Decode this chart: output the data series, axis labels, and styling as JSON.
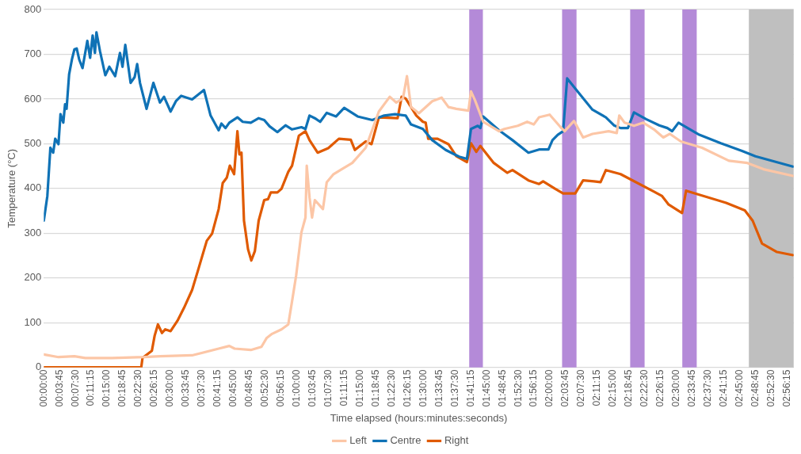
{
  "chart_data": {
    "type": "line",
    "xlabel": "Time elapsed (hours:minutes:seconds)",
    "ylabel": "Temperature (°C)",
    "xlim": [
      0,
      2.963
    ],
    "xticks": [
      {
        "value": 0,
        "label": "00:00:00"
      },
      {
        "value": 0.0625,
        "label": "00:03:45"
      },
      {
        "value": 0.125,
        "label": "00:07:30"
      },
      {
        "value": 0.1875,
        "label": "00:11:15"
      },
      {
        "value": 0.25,
        "label": "00:15:00"
      },
      {
        "value": 0.3125,
        "label": "00:18:45"
      },
      {
        "value": 0.375,
        "label": "00:22:30"
      },
      {
        "value": 0.4375,
        "label": "00:26:15"
      },
      {
        "value": 0.5,
        "label": "00:30:00"
      },
      {
        "value": 0.5625,
        "label": "00:33:45"
      },
      {
        "value": 0.625,
        "label": "00:37:30"
      },
      {
        "value": 0.6875,
        "label": "00:41:15"
      },
      {
        "value": 0.75,
        "label": "00:45:00"
      },
      {
        "value": 0.8125,
        "label": "00:48:45"
      },
      {
        "value": 0.875,
        "label": "00:52:30"
      },
      {
        "value": 0.9375,
        "label": "00:56:15"
      },
      {
        "value": 1,
        "label": "01:00:00"
      },
      {
        "value": 1.0625,
        "label": "01:03:45"
      },
      {
        "value": 1.125,
        "label": "01:07:30"
      },
      {
        "value": 1.1875,
        "label": "01:11:15"
      },
      {
        "value": 1.25,
        "label": "01:15:00"
      },
      {
        "value": 1.3125,
        "label": "01:18:45"
      },
      {
        "value": 1.375,
        "label": "01:22:30"
      },
      {
        "value": 1.4375,
        "label": "01:26:15"
      },
      {
        "value": 1.5,
        "label": "01:30:00"
      },
      {
        "value": 1.5625,
        "label": "01:33:45"
      },
      {
        "value": 1.625,
        "label": "01:37:30"
      },
      {
        "value": 1.6875,
        "label": "01:41:15"
      },
      {
        "value": 1.75,
        "label": "01:45:00"
      },
      {
        "value": 1.8125,
        "label": "01:48:45"
      },
      {
        "value": 1.875,
        "label": "01:52:30"
      },
      {
        "value": 1.9375,
        "label": "01:56:15"
      },
      {
        "value": 2,
        "label": "02:00:00"
      },
      {
        "value": 2.0625,
        "label": "02:03:45"
      },
      {
        "value": 2.125,
        "label": "02:07:30"
      },
      {
        "value": 2.1875,
        "label": "02:11:15"
      },
      {
        "value": 2.25,
        "label": "02:15:00"
      },
      {
        "value": 2.3125,
        "label": "02:18:45"
      },
      {
        "value": 2.375,
        "label": "02:22:30"
      },
      {
        "value": 2.4375,
        "label": "02:26:15"
      },
      {
        "value": 2.5,
        "label": "02:30:00"
      },
      {
        "value": 2.5625,
        "label": "02:33:45"
      },
      {
        "value": 2.625,
        "label": "02:37:30"
      },
      {
        "value": 2.6875,
        "label": "02:41:15"
      },
      {
        "value": 2.75,
        "label": "02:45:00"
      },
      {
        "value": 2.8125,
        "label": "02:48:45"
      },
      {
        "value": 2.875,
        "label": "02:52:30"
      },
      {
        "value": 2.9375,
        "label": "02:56:15"
      }
    ],
    "ylim": [
      0,
      800
    ],
    "yticks": [
      0,
      100,
      200,
      300,
      400,
      500,
      600,
      700,
      800
    ],
    "grid": "y",
    "legend": "bottom",
    "bands": [
      {
        "axis": "x",
        "from": 1.681,
        "to": 1.735,
        "color": "#b48ad8"
      },
      {
        "axis": "x",
        "from": 2.048,
        "to": 2.105,
        "color": "#b48ad8"
      },
      {
        "axis": "x",
        "from": 2.317,
        "to": 2.374,
        "color": "#b48ad8"
      },
      {
        "axis": "x",
        "from": 2.523,
        "to": 2.58,
        "color": "#b48ad8"
      },
      {
        "axis": "x",
        "from": 2.786,
        "to": 2.963,
        "color": "#bfbfbf"
      }
    ],
    "series": [
      {
        "name": "Left",
        "color": "#fcc6a6",
        "x": [
          0,
          0.058,
          0.121,
          0.164,
          0.269,
          0.396,
          0.459,
          0.586,
          0.691,
          0.733,
          0.754,
          0.818,
          0.86,
          0.881,
          0.902,
          0.939,
          0.966,
          0.981,
          0.997,
          1.018,
          1.034,
          1.039,
          1.05,
          1.06,
          1.071,
          1.103,
          1.118,
          1.145,
          1.177,
          1.219,
          1.272,
          1.324,
          1.367,
          1.393,
          1.419,
          1.435,
          1.451,
          1.482,
          1.535,
          1.572,
          1.599,
          1.63,
          1.678,
          1.688,
          1.704,
          1.736,
          1.799,
          1.82,
          1.873,
          1.91,
          1.936,
          1.957,
          1.999,
          2.042,
          2.058,
          2.095,
          2.131,
          2.168,
          2.232,
          2.264,
          2.274,
          2.295,
          2.332,
          2.369,
          2.411,
          2.448,
          2.474,
          2.517,
          2.601,
          2.707,
          2.78,
          2.844,
          2.96
        ],
        "values": [
          29,
          23,
          25,
          21,
          21,
          23,
          25,
          27,
          42,
          48,
          42,
          39,
          46,
          66,
          75,
          85,
          96,
          148,
          205,
          302,
          335,
          451,
          380,
          335,
          374,
          354,
          414,
          432,
          443,
          457,
          491,
          572,
          605,
          592,
          601,
          651,
          582,
          568,
          595,
          603,
          582,
          578,
          574,
          617,
          597,
          549,
          528,
          533,
          540,
          549,
          543,
          559,
          565,
          537,
          528,
          551,
          514,
          522,
          528,
          524,
          563,
          547,
          540,
          547,
          532,
          514,
          522,
          505,
          491,
          462,
          457,
          443,
          428
        ]
      },
      {
        "name": "Centre",
        "color": "#0f72b6",
        "x": [
          0,
          0.014,
          0.026,
          0.037,
          0.045,
          0.058,
          0.066,
          0.077,
          0.084,
          0.09,
          0.1,
          0.111,
          0.121,
          0.13,
          0.14,
          0.153,
          0.172,
          0.183,
          0.193,
          0.202,
          0.208,
          0.222,
          0.243,
          0.259,
          0.282,
          0.301,
          0.311,
          0.322,
          0.343,
          0.359,
          0.369,
          0.38,
          0.406,
          0.433,
          0.459,
          0.475,
          0.501,
          0.522,
          0.543,
          0.586,
          0.633,
          0.659,
          0.691,
          0.702,
          0.718,
          0.733,
          0.765,
          0.786,
          0.818,
          0.849,
          0.871,
          0.892,
          0.923,
          0.955,
          0.981,
          1.018,
          1.034,
          1.05,
          1.071,
          1.092,
          1.118,
          1.155,
          1.187,
          1.24,
          1.298,
          1.345,
          1.388,
          1.43,
          1.451,
          1.498,
          1.535,
          1.588,
          1.641,
          1.672,
          1.688,
          1.715,
          1.725,
          1.736,
          1.799,
          1.852,
          1.915,
          1.957,
          1.994,
          2.01,
          2.031,
          2.052,
          2.068,
          2.105,
          2.168,
          2.221,
          2.253,
          2.279,
          2.308,
          2.332,
          2.38,
          2.432,
          2.464,
          2.483,
          2.508,
          2.59,
          2.675,
          2.759,
          2.812,
          2.96
        ],
        "values": [
          328,
          383,
          491,
          480,
          511,
          499,
          566,
          547,
          588,
          578,
          655,
          688,
          711,
          713,
          688,
          669,
          730,
          692,
          742,
          703,
          749,
          707,
          653,
          672,
          651,
          703,
          672,
          721,
          636,
          649,
          678,
          636,
          578,
          636,
          592,
          605,
          572,
          595,
          607,
          599,
          620,
          563,
          530,
          545,
          535,
          547,
          559,
          549,
          547,
          557,
          553,
          539,
          526,
          541,
          532,
          537,
          533,
          563,
          557,
          549,
          569,
          561,
          580,
          561,
          553,
          563,
          566,
          563,
          543,
          533,
          508,
          486,
          471,
          466,
          533,
          540,
          535,
          561,
          530,
          508,
          480,
          487,
          487,
          508,
          520,
          528,
          646,
          620,
          576,
          559,
          541,
          535,
          535,
          570,
          555,
          541,
          535,
          528,
          547,
          520,
          501,
          484,
          472,
          449
        ]
      },
      {
        "name": "Right",
        "color": "#e05a00",
        "x": [
          0,
          0.385,
          0.39,
          0.427,
          0.438,
          0.451,
          0.467,
          0.48,
          0.501,
          0.528,
          0.554,
          0.586,
          0.612,
          0.644,
          0.665,
          0.691,
          0.707,
          0.723,
          0.735,
          0.752,
          0.765,
          0.773,
          0.781,
          0.791,
          0.807,
          0.82,
          0.834,
          0.849,
          0.871,
          0.886,
          0.897,
          0.923,
          0.939,
          0.966,
          0.981,
          1.008,
          1.034,
          1.05,
          1.082,
          1.124,
          1.166,
          1.213,
          1.229,
          1.272,
          1.295,
          1.324,
          1.398,
          1.414,
          1.43,
          1.472,
          1.498,
          1.509,
          1.519,
          1.556,
          1.599,
          1.63,
          1.672,
          1.688,
          1.709,
          1.725,
          1.778,
          1.831,
          1.852,
          1.915,
          1.957,
          1.973,
          2.021,
          2.052,
          2.1,
          2.131,
          2.174,
          2.2,
          2.221,
          2.279,
          2.411,
          2.443,
          2.469,
          2.522,
          2.538,
          2.696,
          2.77,
          2.801,
          2.838,
          2.897,
          2.96
        ],
        "values": [
          0,
          0,
          21,
          37,
          71,
          96,
          77,
          85,
          81,
          104,
          133,
          173,
          222,
          283,
          299,
          354,
          412,
          424,
          451,
          432,
          528,
          476,
          480,
          328,
          264,
          239,
          260,
          328,
          374,
          376,
          391,
          391,
          399,
          437,
          451,
          518,
          528,
          508,
          480,
          490,
          511,
          509,
          486,
          505,
          499,
          559,
          557,
          605,
          601,
          563,
          549,
          547,
          511,
          511,
          499,
          472,
          459,
          501,
          482,
          495,
          457,
          435,
          441,
          418,
          410,
          416,
          399,
          389,
          389,
          418,
          416,
          414,
          441,
          432,
          393,
          383,
          364,
          345,
          395,
          368,
          351,
          328,
          277,
          258,
          251
        ]
      }
    ]
  }
}
